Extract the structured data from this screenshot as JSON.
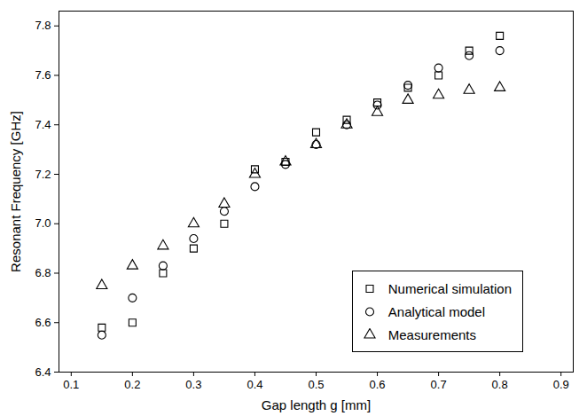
{
  "chart_data": {
    "type": "scatter",
    "x_label": "Gap length g [mm]",
    "y_label": "Resonant Frequency [GHz]",
    "x": [
      0.15,
      0.2,
      0.25,
      0.3,
      0.35,
      0.4,
      0.45,
      0.5,
      0.55,
      0.6,
      0.65,
      0.7,
      0.75,
      0.8
    ],
    "series": [
      {
        "name": "Numerical simulation",
        "color": "#000000",
        "marker": "square",
        "values": [
          6.58,
          6.6,
          6.8,
          6.9,
          7.0,
          7.22,
          7.25,
          7.37,
          7.42,
          7.49,
          7.55,
          7.6,
          7.7,
          7.76
        ]
      },
      {
        "name": "Analytical model",
        "color": "#000000",
        "marker": "circle",
        "values": [
          6.55,
          6.7,
          6.83,
          6.94,
          7.05,
          7.15,
          7.24,
          7.32,
          7.4,
          7.48,
          7.56,
          7.63,
          7.68,
          7.7
        ]
      },
      {
        "name": "Measurements",
        "color": "#000000",
        "marker": "triangle",
        "values": [
          6.75,
          6.83,
          6.91,
          7.0,
          7.08,
          7.2,
          7.25,
          7.32,
          7.4,
          7.45,
          7.5,
          7.52,
          7.54,
          7.55
        ]
      }
    ],
    "xlim": [
      0.08,
      0.92
    ],
    "xticks": [
      0.1,
      0.2,
      0.3,
      0.4,
      0.5,
      0.6,
      0.7,
      0.8,
      0.9
    ],
    "ylim": [
      6.4,
      7.86
    ],
    "yticks": [
      6.4,
      6.6,
      6.8,
      {
        "value": 7,
        "label": "7.0"
      },
      7.2,
      7.4,
      7.6,
      7.8
    ],
    "legend": "lower right",
    "grid": false
  }
}
